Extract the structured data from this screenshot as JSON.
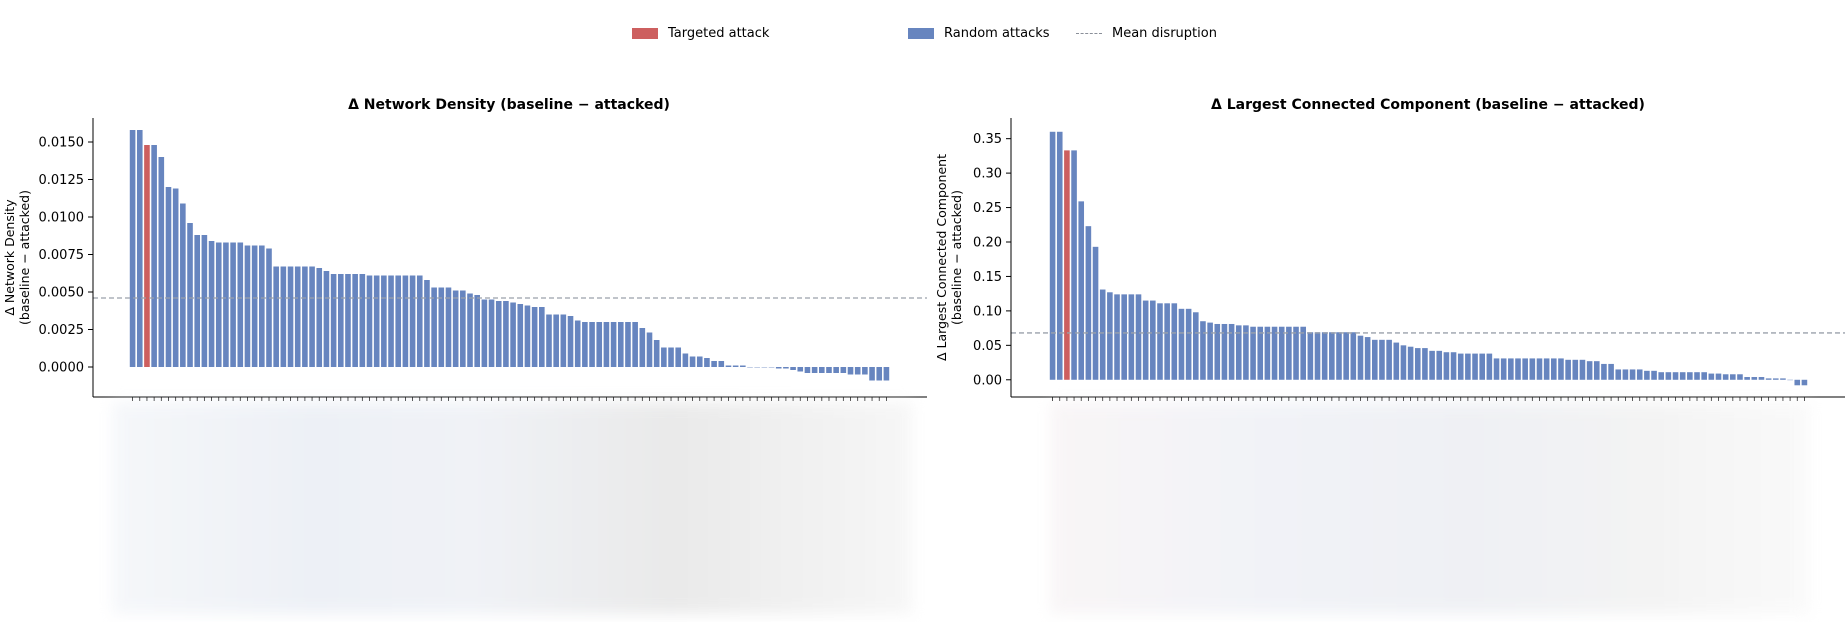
{
  "legend": {
    "targeted_label": "Targeted attack",
    "random_label": "Random attacks",
    "mean_label": "Mean disruption"
  },
  "colors": {
    "targeted": "#cd5f5f",
    "random": "#6785bf",
    "mean_line": "#9aa1ab",
    "axis": "#000000"
  },
  "chart_data": [
    {
      "type": "bar",
      "title": "Δ Network Density (baseline − attacked)",
      "ylabel": [
        "Δ Network Density",
        "(baseline − attacked)"
      ],
      "xlabel": "",
      "ylim": [
        -0.002,
        0.0166
      ],
      "yticks": [
        0,
        0.0025,
        0.005,
        0.0075,
        0.01,
        0.0125,
        0.015
      ],
      "ytick_labels": [
        "0.0000",
        "0.0025",
        "0.0050",
        "0.0075",
        "0.0100",
        "0.0125",
        "0.0150"
      ],
      "mean": 0.0046,
      "targeted_index": 2,
      "values": [
        0.0158,
        0.0158,
        0.0148,
        0.0148,
        0.014,
        0.012,
        0.0119,
        0.0109,
        0.0096,
        0.0088,
        0.0088,
        0.0084,
        0.0083,
        0.0083,
        0.0083,
        0.0083,
        0.0081,
        0.0081,
        0.0081,
        0.0079,
        0.0067,
        0.0067,
        0.0067,
        0.0067,
        0.0067,
        0.0067,
        0.0066,
        0.0064,
        0.0062,
        0.0062,
        0.0062,
        0.0062,
        0.0062,
        0.0061,
        0.0061,
        0.0061,
        0.0061,
        0.0061,
        0.0061,
        0.0061,
        0.0061,
        0.0058,
        0.0053,
        0.0053,
        0.0053,
        0.0051,
        0.0051,
        0.0049,
        0.0048,
        0.0045,
        0.0045,
        0.0044,
        0.0044,
        0.0043,
        0.0042,
        0.0041,
        0.004,
        0.004,
        0.0035,
        0.0035,
        0.0035,
        0.0034,
        0.0031,
        0.003,
        0.003,
        0.003,
        0.003,
        0.003,
        0.003,
        0.003,
        0.003,
        0.0026,
        0.0023,
        0.0018,
        0.0013,
        0.0013,
        0.0013,
        0.0009,
        0.0007,
        0.0007,
        0.0006,
        0.0004,
        0.0004,
        0.0001,
        0.0001,
        0.0001,
        0.0,
        0.0,
        0.0,
        0.0,
        -0.0001,
        -0.0001,
        -0.0002,
        -0.0003,
        -0.0004,
        -0.0004,
        -0.0004,
        -0.0004,
        -0.0004,
        -0.0004,
        -0.0005,
        -0.0005,
        -0.0005,
        -0.0009,
        -0.0009,
        -0.0009
      ]
    },
    {
      "type": "bar",
      "title": "Δ Largest Connected Component (baseline − attacked)",
      "ylabel": [
        "Δ Largest Connected Component",
        "(baseline − attacked)"
      ],
      "xlabel": "",
      "ylim": [
        -0.025,
        0.38
      ],
      "yticks": [
        0,
        0.05,
        0.1,
        0.15,
        0.2,
        0.25,
        0.3,
        0.35
      ],
      "ytick_labels": [
        "0.00",
        "0.05",
        "0.10",
        "0.15",
        "0.20",
        "0.25",
        "0.30",
        "0.35"
      ],
      "mean": 0.068,
      "targeted_index": 2,
      "values": [
        0.36,
        0.36,
        0.333,
        0.333,
        0.259,
        0.223,
        0.193,
        0.131,
        0.127,
        0.124,
        0.124,
        0.124,
        0.124,
        0.115,
        0.115,
        0.111,
        0.111,
        0.111,
        0.103,
        0.103,
        0.098,
        0.085,
        0.083,
        0.081,
        0.081,
        0.081,
        0.079,
        0.079,
        0.077,
        0.077,
        0.077,
        0.077,
        0.077,
        0.077,
        0.077,
        0.077,
        0.069,
        0.069,
        0.069,
        0.069,
        0.069,
        0.069,
        0.069,
        0.064,
        0.062,
        0.058,
        0.058,
        0.058,
        0.054,
        0.05,
        0.048,
        0.046,
        0.046,
        0.042,
        0.042,
        0.04,
        0.04,
        0.038,
        0.038,
        0.038,
        0.038,
        0.038,
        0.031,
        0.031,
        0.031,
        0.031,
        0.031,
        0.031,
        0.031,
        0.031,
        0.031,
        0.031,
        0.029,
        0.029,
        0.029,
        0.027,
        0.027,
        0.023,
        0.023,
        0.015,
        0.015,
        0.015,
        0.015,
        0.013,
        0.013,
        0.011,
        0.011,
        0.011,
        0.011,
        0.011,
        0.011,
        0.011,
        0.009,
        0.009,
        0.008,
        0.008,
        0.008,
        0.004,
        0.004,
        0.004,
        0.002,
        0.002,
        0.002,
        0.0,
        -0.008,
        -0.008
      ]
    }
  ]
}
